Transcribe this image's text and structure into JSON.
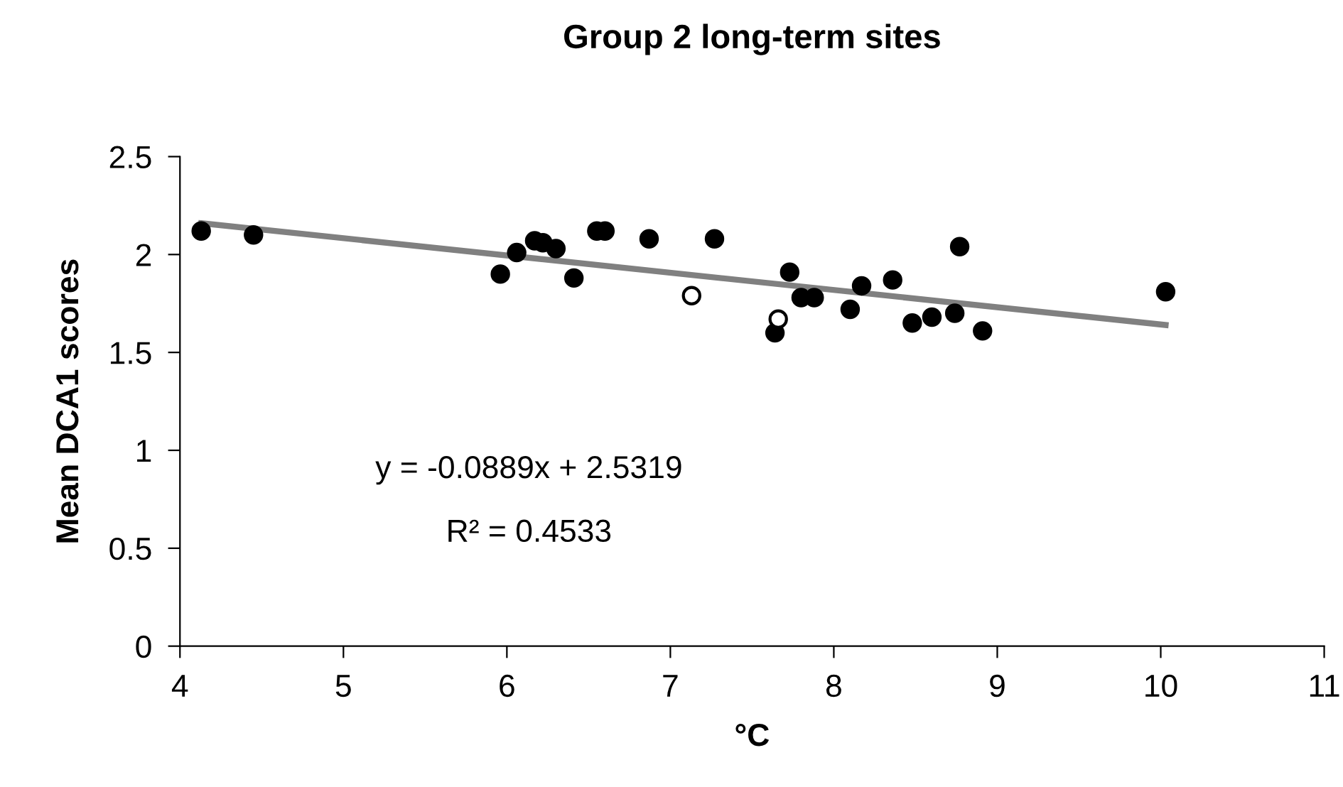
{
  "chart_data": {
    "type": "scatter",
    "title": "Group 2 long-term sites",
    "xlabel": "°C",
    "ylabel": "Mean DCA1 scores",
    "xlim": [
      4,
      11
    ],
    "xticks": [
      4,
      5,
      6,
      7,
      8,
      9,
      10,
      11
    ],
    "ylim": [
      0,
      2.5
    ],
    "yticks": [
      0,
      0.5,
      1,
      1.5,
      2,
      2.5
    ],
    "grid": false,
    "legend": false,
    "marker": "circle",
    "series": [
      {
        "color": "#000000",
        "x": [
          4.13,
          4.45,
          5.96,
          6.06,
          6.17,
          6.22,
          6.3,
          6.41,
          6.55,
          6.6,
          6.87,
          7.27,
          7.64,
          7.73,
          7.8,
          7.88,
          8.1,
          8.17,
          8.36,
          8.48,
          8.6,
          8.74,
          8.77,
          8.91,
          10.03
        ],
        "values": [
          2.12,
          2.1,
          1.9,
          2.01,
          2.07,
          2.06,
          2.03,
          1.88,
          2.12,
          2.12,
          2.08,
          2.08,
          1.6,
          1.91,
          1.78,
          1.78,
          1.72,
          1.84,
          1.87,
          1.65,
          1.68,
          1.7,
          2.04,
          1.61,
          1.81
        ]
      },
      {
        "color": "#ffffff",
        "x": [
          7.13,
          7.66
        ],
        "values": [
          1.79,
          1.67
        ]
      },
      {
        "type": "line",
        "color": "#808080",
        "marker": "none",
        "x": [
          4.13,
          10.03
        ],
        "values": [
          2.16,
          1.64
        ]
      }
    ],
    "annotations": [
      "y = -0.0889x + 2.5319",
      "R² = 0.4533"
    ]
  }
}
